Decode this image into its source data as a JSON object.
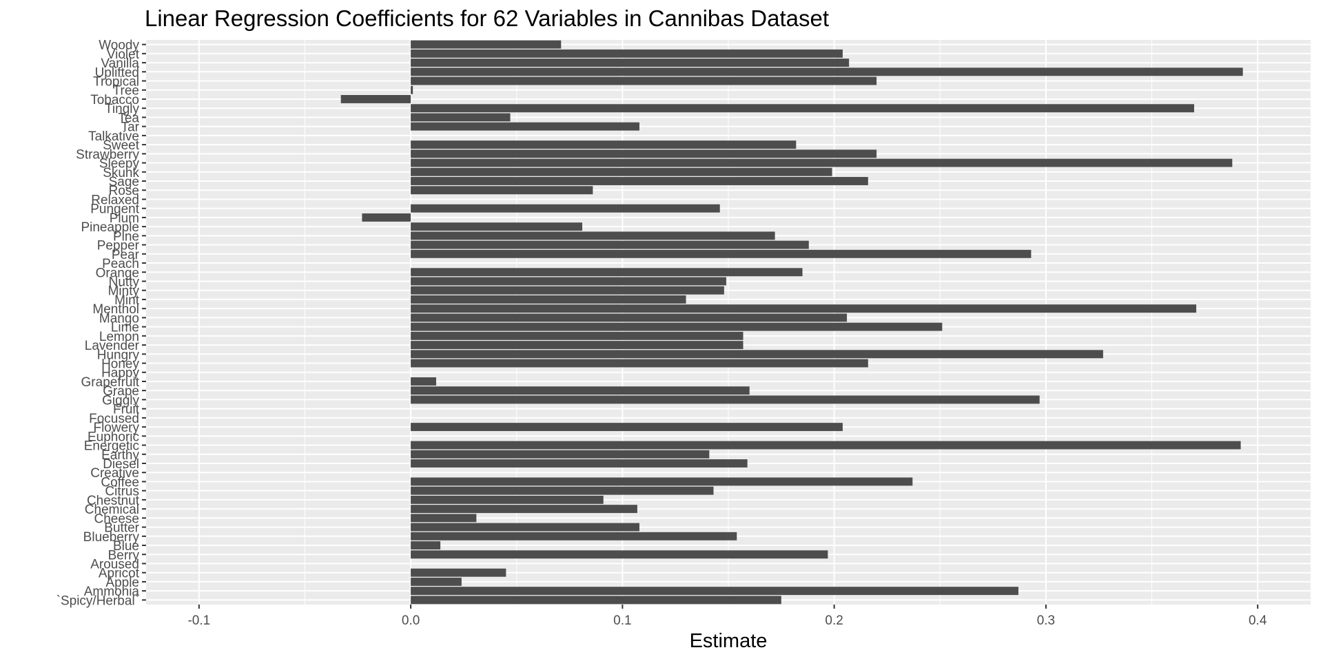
{
  "chart_data": {
    "type": "bar",
    "orientation": "horizontal",
    "title": "Linear Regression Coefficients for 62 Variables in Cannibas Dataset",
    "xlabel": "Estimate",
    "ylabel": "",
    "xlim": [
      -0.125,
      0.425
    ],
    "xticks": [
      -0.1,
      0.0,
      0.1,
      0.2,
      0.3,
      0.4
    ],
    "xtick_labels": [
      "-0.1",
      "0.0",
      "0.1",
      "0.2",
      "0.3",
      "0.4"
    ],
    "grid": true,
    "legend": "none",
    "bar_color": "#4d4d4d",
    "panel_color": "#ebebeb",
    "grid_color": "#ffffff",
    "categories": [
      "`Spicy/Herbal`",
      "Ammonia",
      "Apple",
      "Apricot",
      "Aroused",
      "Berry",
      "Blue",
      "Blueberry",
      "Butter",
      "Cheese",
      "Chemical",
      "Chestnut",
      "Citrus",
      "Coffee",
      "Creative",
      "Diesel",
      "Earthy",
      "Energetic",
      "Euphoric",
      "Flowery",
      "Focused",
      "Fruit",
      "Giggly",
      "Grape",
      "Grapefruit",
      "Happy",
      "Honey",
      "Hungry",
      "Lavender",
      "Lemon",
      "Lime",
      "Mango",
      "Menthol",
      "Mint",
      "Minty",
      "Nutty",
      "Orange",
      "Peach",
      "Pear",
      "Pepper",
      "Pine",
      "Pineapple",
      "Plum",
      "Pungent",
      "Relaxed",
      "Rose",
      "Sage",
      "Skunk",
      "Sleepy",
      "Strawberry",
      "Sweet",
      "Talkative",
      "Tar",
      "Tea",
      "Tingly",
      "Tobacco",
      "Tree",
      "Tropical",
      "Uplifted",
      "Vanilla",
      "Violet",
      "Woody"
    ],
    "values": [
      0.175,
      0.287,
      0.024,
      0.045,
      0.0,
      0.197,
      0.014,
      0.154,
      0.108,
      0.031,
      0.107,
      0.091,
      0.143,
      0.237,
      0.0,
      0.159,
      0.141,
      0.392,
      0.0,
      0.204,
      0.0,
      0.0,
      0.297,
      0.16,
      0.012,
      0.0,
      0.216,
      0.327,
      0.157,
      0.157,
      0.251,
      0.206,
      0.371,
      0.13,
      0.148,
      0.149,
      0.185,
      0.0,
      0.293,
      0.188,
      0.172,
      0.081,
      -0.023,
      0.146,
      0.0,
      0.086,
      0.216,
      0.199,
      0.388,
      0.22,
      0.182,
      0.0,
      0.108,
      0.047,
      0.37,
      -0.033,
      0.001,
      0.22,
      0.393,
      0.207,
      0.204,
      0.071
    ]
  }
}
